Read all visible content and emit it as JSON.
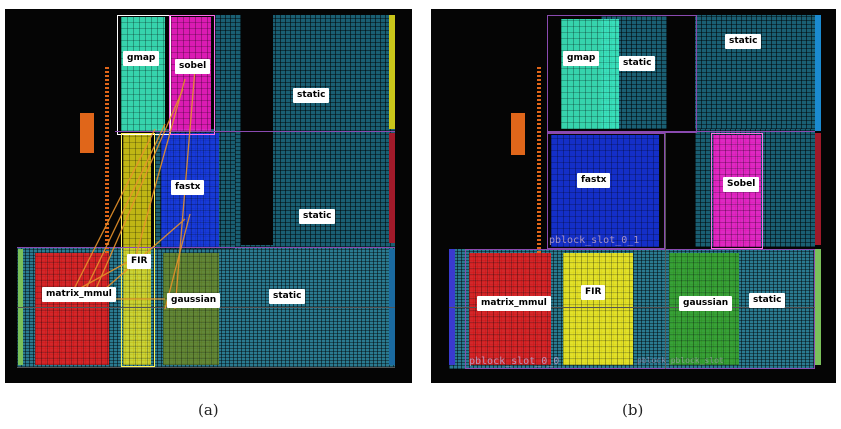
{
  "captions": {
    "a": "(a)",
    "b": "(b)"
  },
  "panel_a": {
    "labels": {
      "gmap": "gmap",
      "sobel": "sobel",
      "static_1": "static",
      "fastx": "fastx",
      "static_2": "static",
      "fir": "FIR",
      "matrix_mmul": "matrix_mmul",
      "gaussian": "gaussian",
      "static_3": "static"
    }
  },
  "panel_b": {
    "labels": {
      "gmap": "gmap",
      "static_1": "static",
      "static_2": "static",
      "fastx": "fastx",
      "sobel": "Sobel",
      "matrix_mmul": "matrix_mmul",
      "fir": "FIR",
      "gaussian": "gaussian",
      "static_3": "static"
    },
    "pblocks": {
      "slot_0_1": "pblock_slot_0_1",
      "slot_0_0": "pblock_slot_0_0",
      "faint_right": "pblock_pblock_slot"
    }
  },
  "colors": {
    "gmap": "#3ff5c8",
    "sobel": "#ff1fd0",
    "fastx": "#1736e8",
    "fir": "#fff21a",
    "matrix_mmul": "#ee1a1a",
    "gaussian": "#3aa82a",
    "static_fabric": "#1a5f73",
    "orange": "#e0661a"
  }
}
